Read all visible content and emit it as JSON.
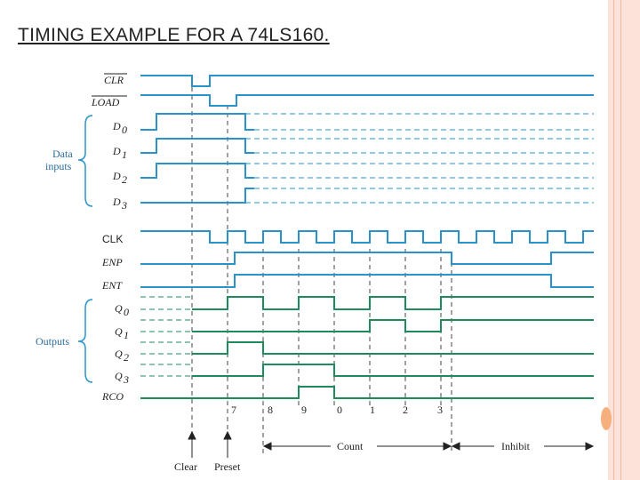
{
  "title": "TIMING EXAMPLE FOR A 74LS160.",
  "colors": {
    "blue": "#2a93c9",
    "green": "#1f8a5c",
    "grid": "#444444",
    "accent": "#f3b7a2"
  },
  "signals": {
    "clr": "CLR",
    "load": "LOAD",
    "d0": "D",
    "d1": "D",
    "d2": "D",
    "d3": "D",
    "clk": "CLK",
    "enp": "ENP",
    "ent": "ENT",
    "q0": "Q",
    "q1": "Q",
    "q2": "Q",
    "q3": "Q",
    "rco": "RCO"
  },
  "subscripts": [
    "0",
    "1",
    "2",
    "3"
  ],
  "groups": {
    "data_inputs_line1": "Data",
    "data_inputs_line2": "inputs",
    "outputs": "Outputs"
  },
  "count_sequence": [
    "7",
    "8",
    "9",
    "0",
    "1",
    "2",
    "3"
  ],
  "bottom": {
    "clear": "Clear",
    "preset": "Preset",
    "count": "Count",
    "inhibit": "Inhibit"
  }
}
